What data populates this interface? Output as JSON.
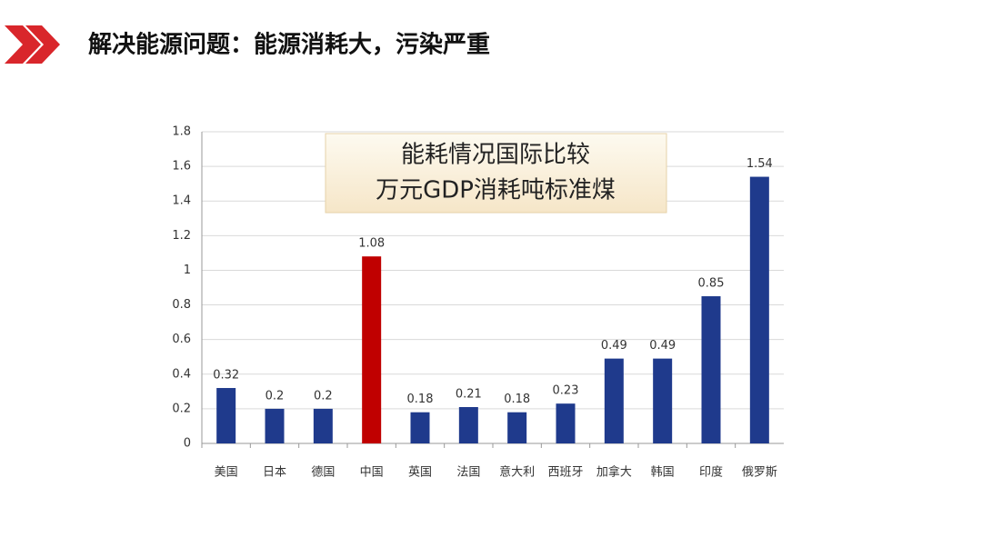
{
  "header": {
    "title": "解决能源问题：能源消耗大，污染严重"
  },
  "chart_data": {
    "type": "bar",
    "title": "能耗情况国际比较",
    "subtitle": "万元GDP消耗吨标准煤",
    "categories": [
      "美国",
      "日本",
      "德国",
      "中国",
      "英国",
      "法国",
      "意大利",
      "西班牙",
      "加拿大",
      "韩国",
      "印度",
      "俄罗斯"
    ],
    "values": [
      0.32,
      0.2,
      0.2,
      1.08,
      0.18,
      0.21,
      0.18,
      0.23,
      0.49,
      0.49,
      0.85,
      1.54
    ],
    "colors": [
      "#1f3a8c",
      "#1f3a8c",
      "#1f3a8c",
      "#c00000",
      "#1f3a8c",
      "#1f3a8c",
      "#1f3a8c",
      "#1f3a8c",
      "#1f3a8c",
      "#1f3a8c",
      "#1f3a8c",
      "#1f3a8c"
    ],
    "ylim": [
      0,
      1.8
    ],
    "yticks": [
      0,
      0.2,
      0.4,
      0.6,
      0.8,
      1,
      1.2,
      1.4,
      1.6,
      1.8
    ],
    "grid": true
  }
}
